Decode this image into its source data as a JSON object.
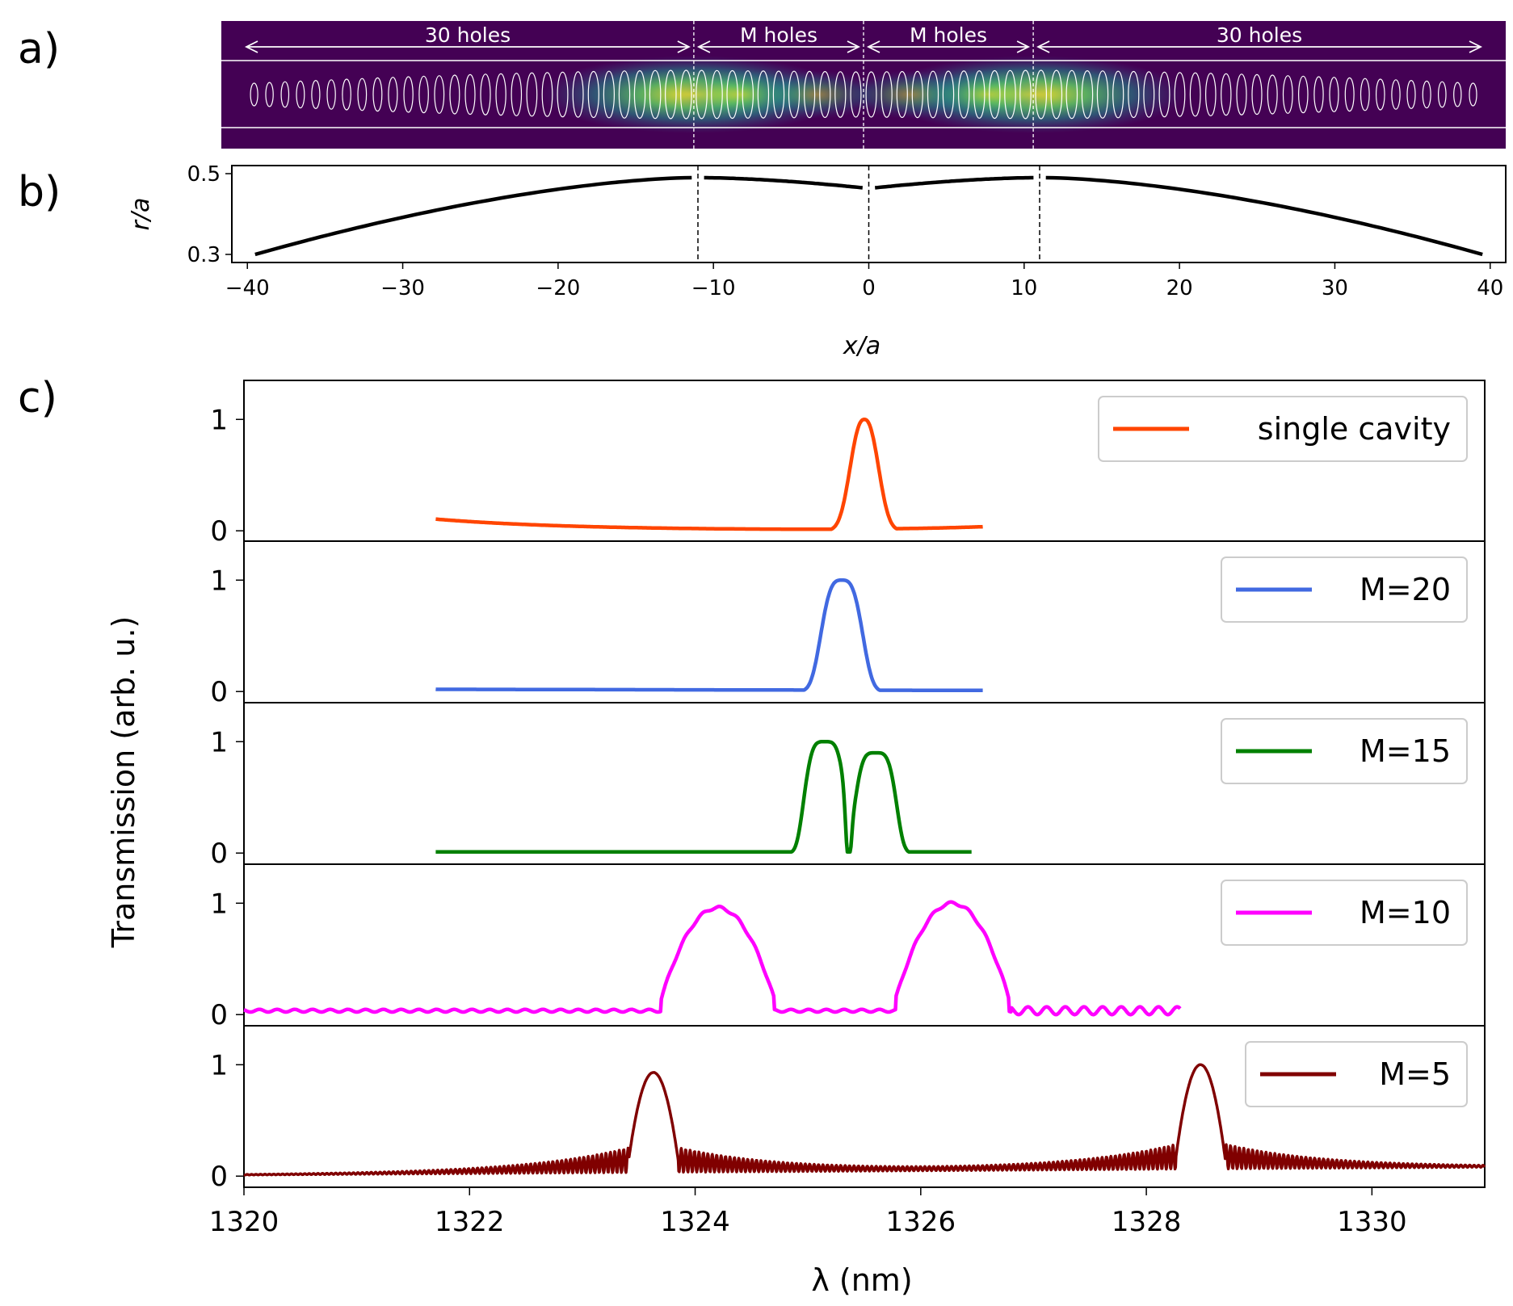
{
  "panel_labels": [
    "a)",
    "b)",
    "c)"
  ],
  "chart_data": [
    {
      "panel": "a)",
      "type": "heatmap",
      "section_labels": [
        "30 holes",
        "M holes",
        "M holes",
        "30 holes"
      ],
      "section_boundaries": [
        -40,
        -11,
        0,
        11,
        40
      ],
      "colors": {
        "background": "#440154",
        "field_mid": "#21918c",
        "field_peak": "#fde725",
        "holes": "#ffffff"
      }
    },
    {
      "panel": "b)",
      "type": "line",
      "xlabel": "x/a",
      "ylabel": "r/a",
      "xlim": [
        -41,
        41
      ],
      "ylim": [
        0.28,
        0.52
      ],
      "xticks": [
        -40,
        -30,
        -20,
        -10,
        0,
        10,
        20,
        30,
        40
      ],
      "xtick_labels": [
        "−40",
        "−30",
        "−20",
        "−10",
        "0",
        "10",
        "20",
        "30",
        "40"
      ],
      "yticks": [
        0.3,
        0.5
      ],
      "ytick_labels": [
        "0.3",
        "0.5"
      ],
      "dashed_lines_x": [
        -11,
        0,
        11
      ],
      "segments": [
        {
          "x_start": -39.5,
          "x_end": -11.4,
          "y_start": 0.3,
          "y_end": 0.49
        },
        {
          "x_start": -10.6,
          "x_end": -0.4,
          "y_start": 0.49,
          "y_end": 0.465
        },
        {
          "x_start": 0.4,
          "x_end": 10.6,
          "y_start": 0.465,
          "y_end": 0.49
        },
        {
          "x_start": 11.4,
          "x_end": 39.5,
          "y_start": 0.49,
          "y_end": 0.3
        }
      ]
    },
    {
      "panel": "c)",
      "type": "line",
      "xlabel": "λ (nm)",
      "ylabel": "Transmission (arb. u.)",
      "xlim": [
        1320,
        1331
      ],
      "ylim": [
        -0.1,
        1.35
      ],
      "xticks": [
        1320,
        1322,
        1324,
        1326,
        1328,
        1330
      ],
      "xtick_labels": [
        "1320",
        "1322",
        "1324",
        "1326",
        "1328",
        "1330"
      ],
      "yticks": [
        0,
        1
      ],
      "ytick_labels": [
        "0",
        "1"
      ],
      "legend_position": "upper-right",
      "series": [
        {
          "name": "single cavity",
          "color": "#ff4500",
          "x_range": [
            1321.7,
            1326.55
          ],
          "baseline_start": 0.1,
          "baseline_end": 0.035,
          "peaks": [
            {
              "center": 1325.5,
              "height": 1.0,
              "width": 0.12
            }
          ]
        },
        {
          "name": "M=20",
          "color": "#4169e1",
          "x_range": [
            1321.7,
            1326.55
          ],
          "baseline_start": 0.02,
          "baseline_end": 0.01,
          "peaks": [
            {
              "center": 1325.3,
              "height": 1.0,
              "width": 0.17
            }
          ]
        },
        {
          "name": "M=15",
          "color": "#008000",
          "x_range": [
            1321.7,
            1326.45
          ],
          "baseline_start": 0.02,
          "baseline_end": 0.01,
          "peaks": [
            {
              "center": 1325.15,
              "height": 1.0,
              "width": 0.17
            },
            {
              "center": 1325.6,
              "height": 0.9,
              "width": 0.17
            }
          ]
        },
        {
          "name": "M=10",
          "color": "#ff00ff",
          "x_range": [
            1320,
            1328.3
          ],
          "baseline_start": 0.035,
          "baseline_end": 0.035,
          "peaks": [
            {
              "center": 1324.2,
              "height": 0.96,
              "width": 0.5
            },
            {
              "center": 1326.28,
              "height": 1.0,
              "width": 0.5
            }
          ]
        },
        {
          "name": "M=5",
          "color": "#800000",
          "x_range": [
            1320,
            1331
          ],
          "baseline_start": 0.01,
          "baseline_end": 0.08,
          "peaks": [
            {
              "center": 1323.63,
              "height": 0.93,
              "width": 0.22
            },
            {
              "center": 1328.48,
              "height": 1.0,
              "width": 0.22
            }
          ]
        }
      ]
    }
  ]
}
